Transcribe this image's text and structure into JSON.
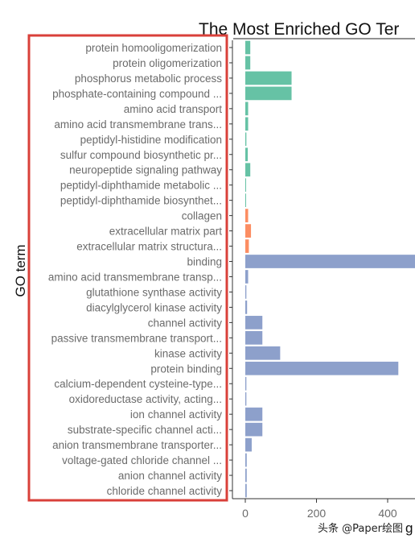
{
  "chart_data": {
    "type": "bar",
    "orientation": "horizontal",
    "title": "The Most Enriched GO Ter",
    "ylabel": "GO term",
    "xlabel": "g",
    "xlim": [
      -20,
      480
    ],
    "xticks": [
      0,
      200,
      400
    ],
    "grid": false,
    "colors": {
      "BP": "#66c2a5",
      "CC": "#fc8d62",
      "MF": "#8da0cb",
      "highlight_box": "#d9403a"
    },
    "categories": [
      "protein homooligomerization",
      "protein oligomerization",
      "phosphorus metabolic process",
      "phosphate-containing compound ...",
      "amino acid transport",
      "amino acid transmembrane trans...",
      "peptidyl-histidine modification",
      "sulfur compound biosynthetic pr...",
      "neuropeptide signaling pathway",
      "peptidyl-diphthamide metabolic ...",
      "peptidyl-diphthamide biosynthet...",
      "collagen",
      "extracellular matrix part",
      "extracellular matrix structura...",
      "binding",
      "amino acid transmembrane transp...",
      "glutathione synthase activity",
      "diacylglycerol kinase activity",
      "channel activity",
      "passive transmembrane transport...",
      "kinase activity",
      "protein binding",
      "calcium-dependent cysteine-type...",
      "oxidoreductase activity, acting...",
      "ion channel activity",
      "substrate-specific channel acti...",
      "anion transmembrane transporter...",
      "voltage-gated chloride channel ...",
      "anion channel activity",
      "chloride channel activity"
    ],
    "values": [
      14,
      14,
      130,
      130,
      8,
      8,
      3,
      7,
      14,
      2,
      2,
      8,
      16,
      10,
      480,
      8,
      3,
      5,
      48,
      48,
      98,
      430,
      3,
      3,
      48,
      48,
      18,
      4,
      4,
      4
    ],
    "groups": [
      "BP",
      "BP",
      "BP",
      "BP",
      "BP",
      "BP",
      "BP",
      "BP",
      "BP",
      "BP",
      "BP",
      "CC",
      "CC",
      "CC",
      "MF",
      "MF",
      "MF",
      "MF",
      "MF",
      "MF",
      "MF",
      "MF",
      "MF",
      "MF",
      "MF",
      "MF",
      "MF",
      "MF",
      "MF",
      "MF"
    ]
  },
  "watermark": "头条 @Paper绘图"
}
